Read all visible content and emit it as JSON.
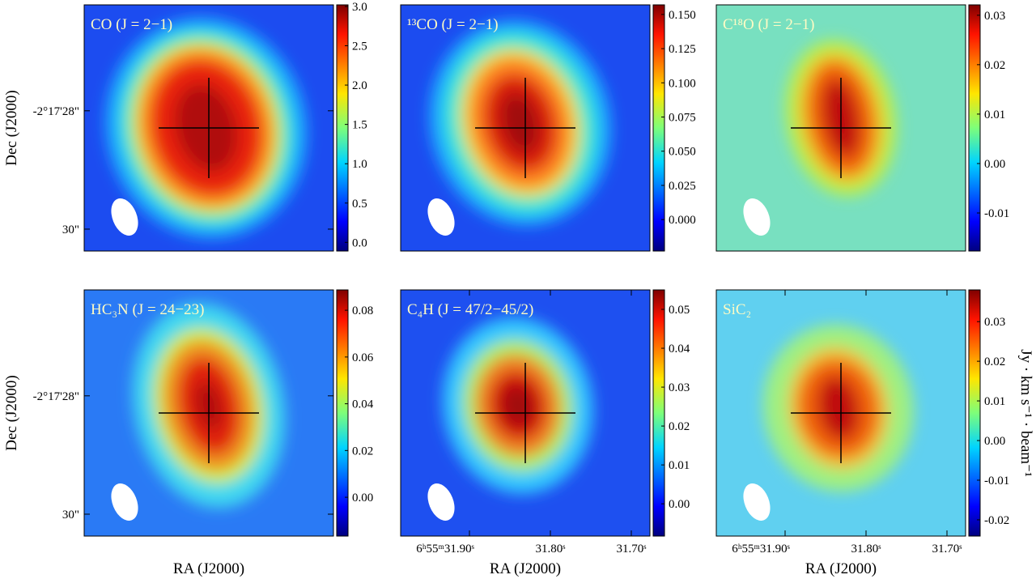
{
  "chart_data": [
    {
      "type": "image",
      "title": "CO (J = 2−1)",
      "clim": [
        -0.11,
        3.02
      ],
      "cticks": [
        {
          "value": 0,
          "label": "0.0"
        },
        0.5,
        {
          "value": 1,
          "label": "1.0"
        },
        1.5,
        {
          "value": 2,
          "label": "2.0"
        },
        2.5,
        {
          "value": 3,
          "label": "3.0"
        }
      ],
      "xlim": [
        31.985,
        31.677
      ],
      "ylim": [
        30.37,
        26.21
      ],
      "ylabel": "Dec (J2000)",
      "yticks": [
        {
          "value": 28,
          "label": "-2°17'28\""
        },
        {
          "value": 30,
          "label": "30\""
        }
      ]
    },
    {
      "type": "image",
      "title": "¹³CO (J = 2−1)",
      "clim": [
        -0.023,
        0.157
      ],
      "cticks": [
        {
          "value": 0,
          "label": "0.000"
        },
        0.025,
        {
          "value": 0.05,
          "label": "0.050"
        },
        0.075,
        {
          "value": 0.1,
          "label": "0.100"
        },
        0.125,
        {
          "value": 0.15,
          "label": "0.150"
        }
      ],
      "xlim": [
        31.985,
        31.677
      ],
      "ylim": [
        30.37,
        26.21
      ]
    },
    {
      "type": "image",
      "title": "C¹⁸O (J = 2−1)",
      "clim": [
        -0.0177,
        0.0321
      ],
      "cticks": [
        -0.01,
        {
          "value": 0,
          "label": "0.00"
        },
        0.01,
        0.02,
        0.03
      ],
      "xlim": [
        31.985,
        31.677
      ],
      "ylim": [
        30.37,
        26.21
      ]
    },
    {
      "type": "image",
      "title": "HC₃N (J = 24−23)",
      "clim": [
        -0.0166,
        0.0887
      ],
      "cticks": [
        {
          "value": 0,
          "label": "0.00"
        },
        0.02,
        0.04,
        0.06,
        0.08
      ],
      "xlim": [
        31.985,
        31.677
      ],
      "ylim": [
        30.37,
        26.21
      ],
      "ylabel": "Dec (J2000)",
      "xlabel": "RA (J2000)",
      "yticks": [
        {
          "value": 28,
          "label": "-2°17'28\""
        },
        {
          "value": 30,
          "label": "30\""
        }
      ]
    },
    {
      "type": "image",
      "title": "C₄H (J = 47/2−45/2)",
      "clim": [
        -0.0083,
        0.055
      ],
      "cticks": [
        {
          "value": 0,
          "label": "0.00"
        },
        0.01,
        0.02,
        0.03,
        0.04,
        0.05
      ],
      "xlim": [
        31.985,
        31.677
      ],
      "ylim": [
        30.37,
        26.21
      ],
      "xlabel": "RA (J2000)",
      "xticks": [
        {
          "value": 31.9,
          "label": "6ʰ55ᵐ31.90ˢ"
        },
        {
          "value": 31.8,
          "label": "31.80ˢ"
        },
        {
          "value": 31.7,
          "label": "31.70ˢ"
        }
      ]
    },
    {
      "type": "image",
      "title": "SiC₂",
      "clim": [
        -0.0241,
        0.038
      ],
      "cticks": [
        -0.02,
        -0.01,
        {
          "value": 0,
          "label": "0.00"
        },
        0.01,
        0.02,
        0.03
      ],
      "xlim": [
        31.985,
        31.677
      ],
      "ylim": [
        30.37,
        26.21
      ],
      "xlabel": "RA (J2000)",
      "xticks": [
        {
          "value": 31.9,
          "label": "6ʰ55ᵐ31.90ˢ"
        },
        {
          "value": 31.8,
          "label": "31.80ˢ"
        },
        {
          "value": 31.7,
          "label": "31.70ˢ"
        }
      ],
      "colorbar_label": "Jy · km s⁻¹ · beam⁻¹"
    }
  ]
}
